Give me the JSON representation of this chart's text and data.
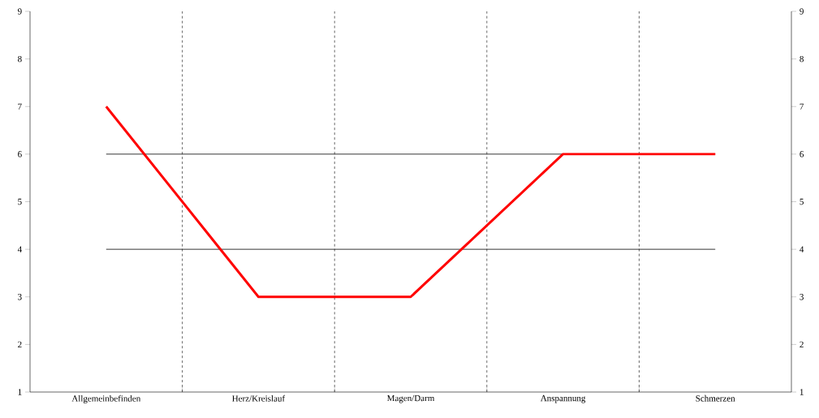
{
  "chart_data": {
    "type": "line",
    "categories": [
      "Allgemeinbefinden",
      "Herz/Kreislauf",
      "Magen/Darm",
      "Anspannung",
      "Schmerzen"
    ],
    "series": [
      {
        "color": "#ff0000",
        "values": [
          7,
          3,
          3,
          6,
          6
        ]
      }
    ],
    "ylim": [
      1,
      9
    ],
    "yticks": [
      1,
      2,
      3,
      4,
      5,
      6,
      7,
      8,
      9
    ],
    "y2lim": [
      1,
      9
    ],
    "y2ticks": [
      1,
      2,
      3,
      4,
      5,
      6,
      7,
      8,
      9
    ],
    "grid": "x",
    "line_style": "solid",
    "ref_lines": [
      {
        "axis": "y",
        "value": 4,
        "color": "#000000"
      },
      {
        "axis": "y",
        "value": 6,
        "color": "#000000"
      }
    ]
  }
}
